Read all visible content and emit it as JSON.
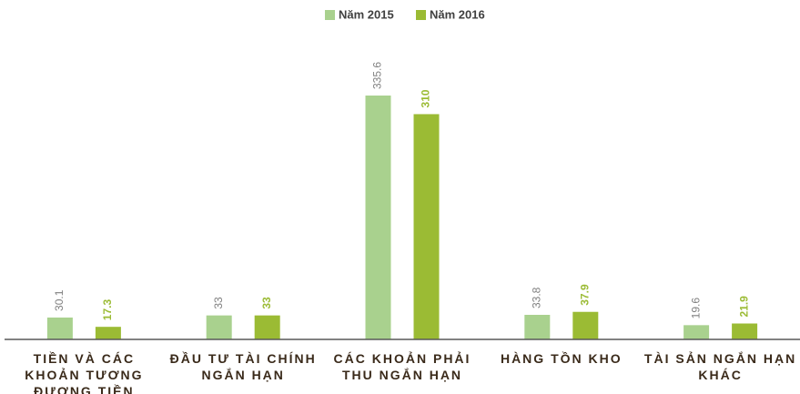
{
  "chart_data": {
    "type": "bar",
    "categories": [
      "TIỀN VÀ CÁC KHOẢN TƯƠNG ĐƯƠNG TIỀN",
      "ĐẦU TƯ TÀI CHÍNH NGẮN HẠN",
      "CÁC KHOẢN PHẢI THU NGẮN HẠN",
      "HÀNG TỒN KHO",
      "TÀI SẢN NGẮN HẠN KHÁC"
    ],
    "series": [
      {
        "name": "Năm 2015",
        "color": "#a9d18e",
        "label_color": "#7f7f7f",
        "values": [
          30.1,
          33,
          335.6,
          33.8,
          19.6
        ]
      },
      {
        "name": "Năm 2016",
        "color": "#9bbb34",
        "label_color": "#9bbb34",
        "values": [
          17.3,
          33,
          310,
          37.9,
          21.9
        ]
      }
    ],
    "legend": "top"
  }
}
